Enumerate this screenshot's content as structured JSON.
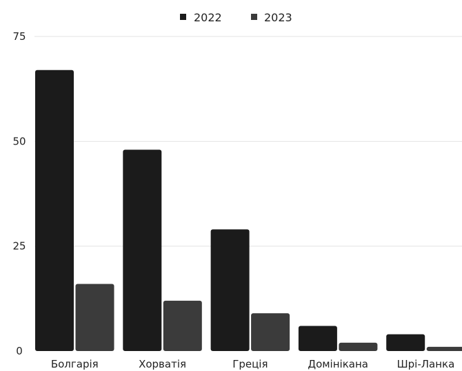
{
  "chart_data": {
    "type": "bar",
    "categories": [
      "Болгарія",
      "Хорватія",
      "Греція",
      "Домінікана",
      "Шрі-Ланка"
    ],
    "series": [
      {
        "name": "2022",
        "values": [
          67,
          48,
          29,
          6,
          4
        ],
        "color": "#1b1b1b"
      },
      {
        "name": "2023",
        "values": [
          16,
          12,
          9,
          2,
          1
        ],
        "color": "#3b3b3b"
      }
    ],
    "yticks": [
      "0",
      "25",
      "50",
      "75"
    ],
    "ylim": [
      0,
      75
    ],
    "grid": true,
    "legend_position": "top-center"
  }
}
